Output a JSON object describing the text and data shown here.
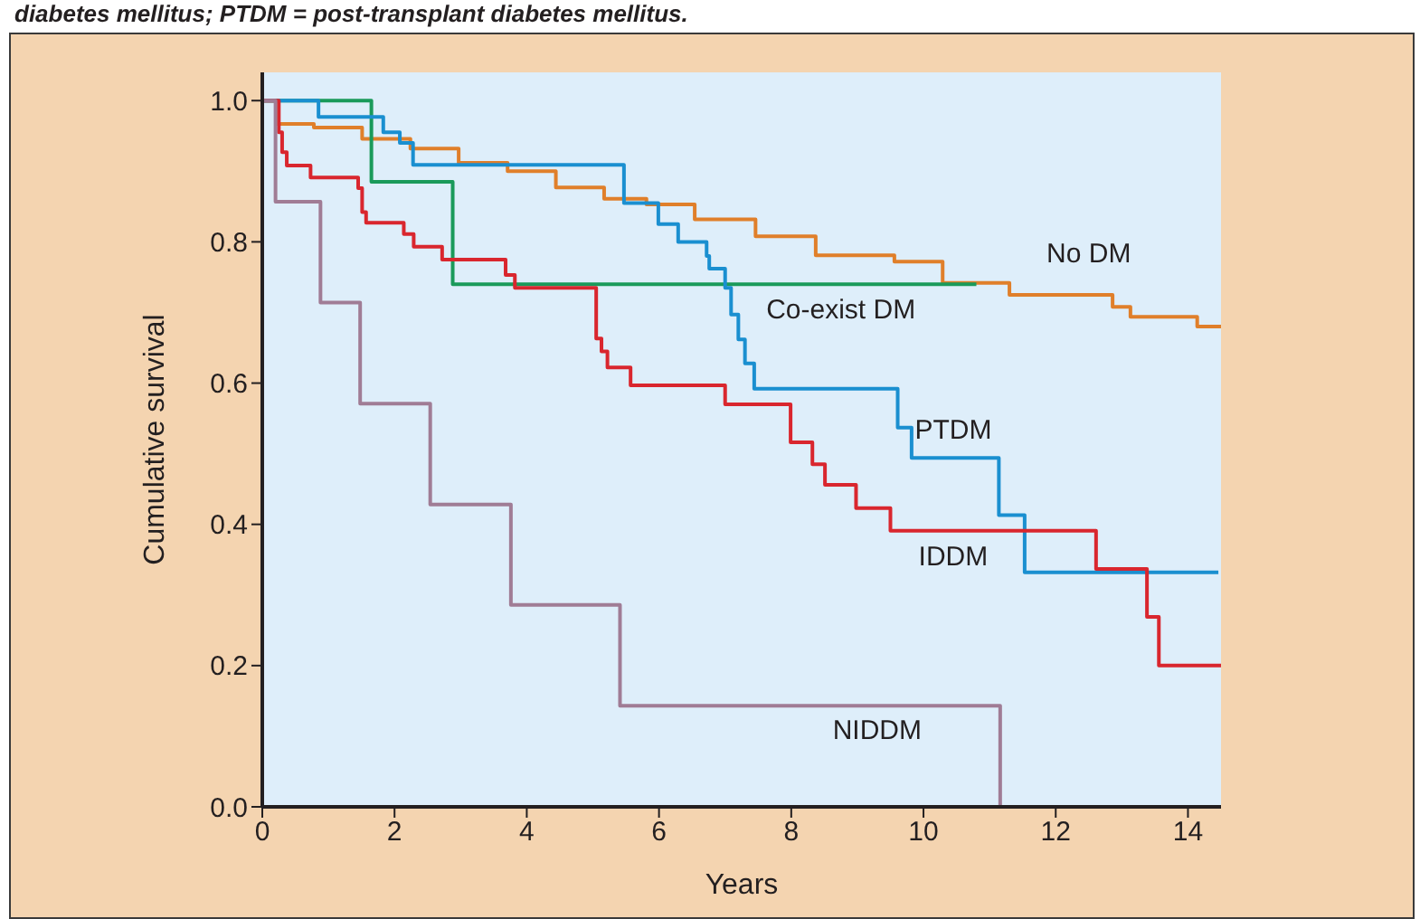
{
  "chart_data": {
    "type": "step",
    "xlabel": "Years",
    "ylabel": "Cumulative survival",
    "annotations": [
      "diabetes mellitus; PTDM = post-transplant diabetes mellitus."
    ],
    "xlim": [
      0,
      14.5
    ],
    "ylim": [
      0,
      1.04
    ],
    "xticks": [
      0,
      2,
      4,
      6,
      8,
      10,
      12,
      14
    ],
    "yticks": [
      {
        "value": 0,
        "label": "0.0"
      },
      {
        "value": 0.2,
        "label": "0.2"
      },
      {
        "value": 0.4,
        "label": "0.4"
      },
      {
        "value": 0.6,
        "label": "0.6"
      },
      {
        "value": 0.8,
        "label": "0.8"
      },
      {
        "value": 1,
        "label": "1.0"
      }
    ],
    "line_style": "solid",
    "series": [
      {
        "name": "No DM",
        "color": "#e07f2a",
        "x": [
          0,
          0.22,
          0.78,
          1.51,
          2.24,
          2.97,
          3.71,
          4.44,
          5.17,
          5.81,
          6.54,
          7.46,
          8.37,
          9.56,
          10.29,
          11.3,
          12.86,
          13.13,
          14.14,
          14.5
        ],
        "values": [
          1.0,
          0.967,
          0.962,
          0.946,
          0.932,
          0.912,
          0.9,
          0.877,
          0.861,
          0.853,
          0.832,
          0.808,
          0.781,
          0.772,
          0.742,
          0.725,
          0.708,
          0.694,
          0.68,
          0.68
        ]
      },
      {
        "name": "Co-exist DM",
        "color": "#1a9a5a",
        "x": [
          0,
          1.65,
          2.88,
          10.8
        ],
        "values": [
          1.0,
          0.885,
          0.74,
          0.74
        ]
      },
      {
        "name": "PTDM",
        "color": "#1a8fd0",
        "x": [
          0,
          0.85,
          1.83,
          2.08,
          2.28,
          5.47,
          5.99,
          6.29,
          6.72,
          6.76,
          7.0,
          7.09,
          7.2,
          7.3,
          7.44,
          9.61,
          9.82,
          11.14,
          11.53,
          14.46
        ],
        "values": [
          1.0,
          0.977,
          0.955,
          0.94,
          0.909,
          0.855,
          0.825,
          0.8,
          0.78,
          0.762,
          0.735,
          0.697,
          0.662,
          0.628,
          0.592,
          0.537,
          0.494,
          0.413,
          0.332,
          0.332
        ]
      },
      {
        "name": "IDDM",
        "color": "#d9262e",
        "x": [
          0,
          0.25,
          0.3,
          0.37,
          0.73,
          1.45,
          1.51,
          1.57,
          2.14,
          2.29,
          2.72,
          3.68,
          3.82,
          5.05,
          5.13,
          5.22,
          5.57,
          7.0,
          7.99,
          8.32,
          8.51,
          8.98,
          9.5,
          12.61,
          13.38,
          13.56,
          14.5
        ],
        "values": [
          1.0,
          0.955,
          0.927,
          0.908,
          0.891,
          0.876,
          0.842,
          0.827,
          0.811,
          0.793,
          0.775,
          0.753,
          0.735,
          0.663,
          0.645,
          0.622,
          0.597,
          0.57,
          0.516,
          0.485,
          0.456,
          0.423,
          0.391,
          0.337,
          0.269,
          0.2,
          0.2
        ]
      },
      {
        "name": "NIDDM",
        "color": "#a07c95",
        "x": [
          0,
          0.2,
          0.88,
          1.48,
          2.54,
          3.76,
          5.41,
          11.16
        ],
        "values": [
          1.0,
          0.857,
          0.714,
          0.571,
          0.428,
          0.286,
          0.143,
          0
        ]
      }
    ]
  }
}
